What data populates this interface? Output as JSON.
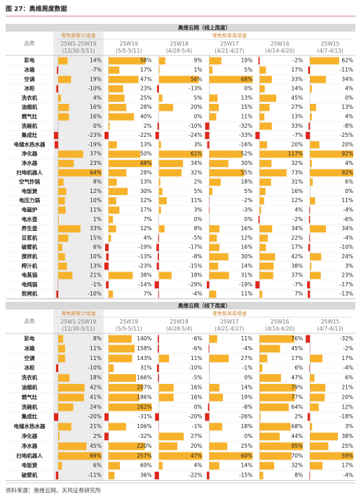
{
  "header": {
    "title": "图 27：奥维周度数据"
  },
  "tables": [
    {
      "title": "奥维云网（线上周度）",
      "group_labels": [
        "零售额累计增速",
        "零售额单周增速"
      ],
      "category_header": "品类",
      "columns": [
        {
          "week": "25W1-25W19",
          "range": "(12/30-5/11)"
        },
        {
          "week": "25W19",
          "range": "(5/5-5/11)"
        },
        {
          "week": "25W18",
          "range": "(4/28-5/4)"
        },
        {
          "week": "25W17",
          "range": "(4/21-4/27)"
        },
        {
          "week": "25W16",
          "range": "(4/14-4/20)"
        },
        {
          "week": "25W15",
          "range": "(4/7-4/13)"
        }
      ],
      "rows": [
        {
          "name": "彩电",
          "values": [
            "14%",
            "58%",
            "9%",
            "19%",
            "-2%",
            "62%"
          ]
        },
        {
          "name": "冰箱",
          "values": [
            "-7%",
            "17%",
            "1%",
            "5%",
            "17%",
            "-11%"
          ]
        },
        {
          "name": "空调",
          "values": [
            "19%",
            "47%",
            "56%",
            "68%",
            "33%",
            "34%"
          ]
        },
        {
          "name": "冰柜",
          "values": [
            "-10%",
            "23%",
            "-13%",
            "0%",
            "14%",
            "4%"
          ]
        },
        {
          "name": "洗衣机",
          "values": [
            "4%",
            "25%",
            "5%",
            "13%",
            "45%",
            "0%"
          ]
        },
        {
          "name": "油烟机",
          "values": [
            "16%",
            "28%",
            "20%",
            "15%",
            "27%",
            "13%"
          ]
        },
        {
          "name": "燃气灶",
          "values": [
            "16%",
            "40%",
            "0%",
            "11%",
            "13%",
            "4%"
          ]
        },
        {
          "name": "洗碗机",
          "values": [
            "0%",
            "2%",
            "-10%",
            "-32%",
            "33%",
            "-8%"
          ]
        },
        {
          "name": "集成灶",
          "values": [
            "-23%",
            "-22%",
            "-24%",
            "-33%",
            "-7%",
            "-25%"
          ]
        },
        {
          "name": "电储水热水器",
          "values": [
            "-19%",
            "13%",
            "3%",
            "-16%",
            "20%",
            "20%"
          ]
        },
        {
          "name": "净化器",
          "values": [
            "37%",
            "50%",
            "61%",
            "52%",
            "117%",
            "92%"
          ]
        },
        {
          "name": "净水器",
          "values": [
            "23%",
            "68%",
            "34%",
            "30%",
            "32%",
            "4%"
          ]
        },
        {
          "name": "扫地机器人",
          "values": [
            "64%",
            "28%",
            "32%",
            "55%",
            "73%",
            "92%"
          ]
        },
        {
          "name": "空气炸锅",
          "values": [
            "8%",
            "13%",
            "2%",
            "18%",
            "31%",
            "6%"
          ]
        },
        {
          "name": "电饭煲",
          "values": [
            "12%",
            "30%",
            "5%",
            "5%",
            "16%",
            "0%"
          ]
        },
        {
          "name": "电压力锅",
          "values": [
            "10%",
            "12%",
            "11%",
            "-2%",
            "12%",
            "11%"
          ]
        },
        {
          "name": "电磁炉",
          "values": [
            "11%",
            "17%",
            "3%",
            "-3%",
            "4%",
            "-4%"
          ]
        },
        {
          "name": "电水壶",
          "values": [
            "1%",
            "7%",
            "0%",
            "0%",
            "-2%",
            "-6%"
          ]
        },
        {
          "name": "养生壶",
          "values": [
            "33%",
            "12%",
            "8%",
            "16%",
            "34%",
            "34%"
          ]
        },
        {
          "name": "豆浆机",
          "values": [
            "15%",
            "4%",
            "-5%",
            "12%",
            "22%",
            "-4%"
          ]
        },
        {
          "name": "破壁机",
          "values": [
            "6%",
            "-19%",
            "-17%",
            "16%",
            "17%",
            "-10%"
          ]
        },
        {
          "name": "搅拌机",
          "values": [
            "10%",
            "-13%",
            "-8%",
            "30%",
            "42%",
            "24%"
          ]
        },
        {
          "name": "榨汁机",
          "values": [
            "13%",
            "-23%",
            "-15%",
            "14%",
            "38%",
            "3%"
          ]
        },
        {
          "name": "电蒸锅",
          "values": [
            "21%",
            "38%",
            "18%",
            "31%",
            "37%",
            "23%"
          ]
        },
        {
          "name": "电炖锅",
          "values": [
            "-1%",
            "-14%",
            "-29%",
            "-19%",
            "-7%",
            "-17%"
          ]
        },
        {
          "name": "煎烤机",
          "values": [
            "-10%",
            "7%",
            "-4%",
            "11%",
            "7%",
            "-13%"
          ]
        }
      ]
    },
    {
      "title": "奥维云网（线下周度）",
      "group_labels": [
        "零售额累计增速",
        "零售额单周增速"
      ],
      "category_header": "品类",
      "columns": [
        {
          "week": "25W1-25W19",
          "range": "(12/30-5/11)"
        },
        {
          "week": "25W19",
          "range": "(5/5-5/11)"
        },
        {
          "week": "25W18",
          "range": "(4/28-5/4)"
        },
        {
          "week": "25W17",
          "range": "(4/21-4/27)"
        },
        {
          "week": "25W16",
          "range": "(4/14-4/20)"
        },
        {
          "week": "25W15",
          "range": "(4/7-4/13)"
        }
      ],
      "rows": [
        {
          "name": "彩电",
          "values": [
            "8%",
            "140%",
            "-6%",
            "11%",
            "76%",
            "-32%"
          ]
        },
        {
          "name": "冰箱",
          "values": [
            "11%",
            "158%",
            "-6%",
            "-4%",
            "45%",
            "-2%"
          ]
        },
        {
          "name": "空调",
          "values": [
            "11%",
            "143%",
            "11%",
            "27%",
            "17%",
            "17%"
          ]
        },
        {
          "name": "冰柜",
          "values": [
            "-10%",
            "31%",
            "-10%",
            "-1%",
            "6%",
            "-4%"
          ]
        },
        {
          "name": "洗衣机",
          "values": [
            "18%",
            "166%",
            "-5%",
            "0%",
            "47%",
            "6%"
          ]
        },
        {
          "name": "油烟机",
          "values": [
            "42%",
            "207%",
            "16%",
            "14%",
            "79%",
            "21%"
          ]
        },
        {
          "name": "燃气灶",
          "values": [
            "41%",
            "186%",
            "16%",
            "19%",
            "77%",
            "20%"
          ]
        },
        {
          "name": "洗碗机",
          "values": [
            "24%",
            "262%",
            "0%",
            "-8%",
            "64%",
            "12%"
          ]
        },
        {
          "name": "集成灶",
          "values": [
            "-20%",
            "-31%",
            "-20%",
            "-26%",
            "2%",
            "-18%"
          ]
        },
        {
          "name": "电储水热水器",
          "values": [
            "21%",
            "106%",
            "-1%",
            "18%",
            "68%",
            "3%"
          ]
        },
        {
          "name": "净化器",
          "values": [
            "2%",
            "-32%",
            "27%",
            "0%",
            "44%",
            "38%"
          ]
        },
        {
          "name": "净水器",
          "values": [
            "45%",
            "220%",
            "20%",
            "25%",
            "95%",
            "25%"
          ]
        },
        {
          "name": "扫地机器人",
          "values": [
            "69%",
            "257%",
            "47%",
            "60%",
            "70%",
            "59%"
          ]
        },
        {
          "name": "电饭煲",
          "values": [
            "6%",
            "69%",
            "4%",
            "14%",
            "32%",
            "17%"
          ]
        },
        {
          "name": "破壁机",
          "values": [
            "-11%",
            "36%",
            "-22%",
            "-15%",
            "8%",
            "-4%"
          ]
        }
      ]
    }
  ],
  "source": "资料来源：奥维云网，天风证券研究所"
}
